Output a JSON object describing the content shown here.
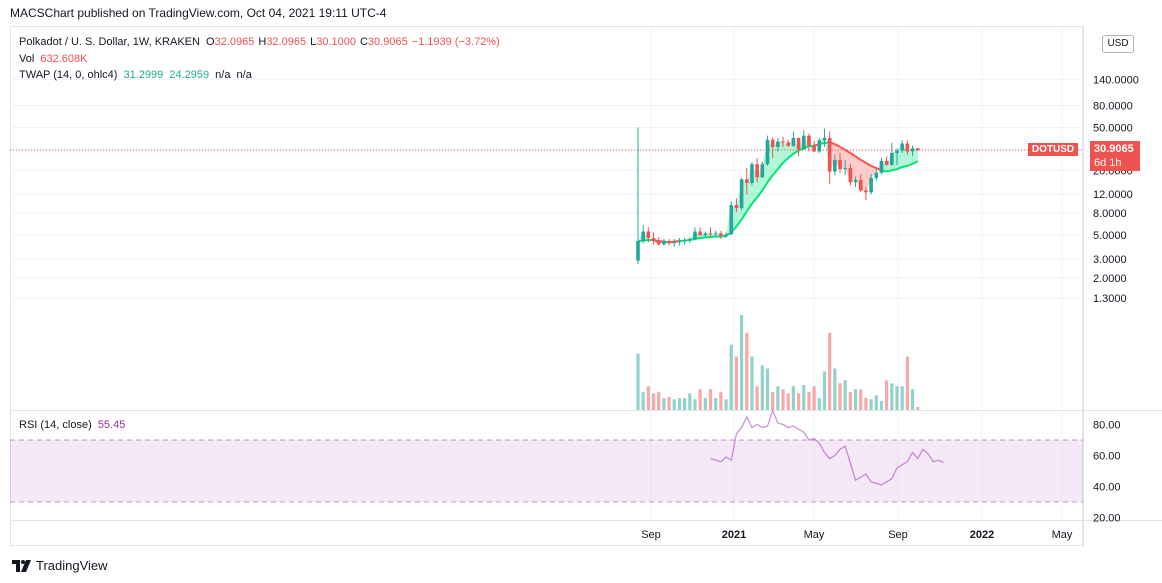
{
  "publisher": "MACSChart published on TradingView.com, Oct 04, 2021 19:11 UTC-4",
  "legend": {
    "title": "Polkadot / U. S. Dollar, 1W, KRAKEN",
    "o_label": "O",
    "o_value": "32.0965",
    "h_label": "H",
    "h_value": "32.0965",
    "l_label": "L",
    "l_value": "30.1000",
    "c_label": "C",
    "c_value": "30.9065",
    "change": "−1.1939 (−3.72%)",
    "vol_label": "Vol",
    "vol_value": "632.608K",
    "twap_label": "TWAP (14, 0, ohlc4)",
    "twap_v1": "31.2999",
    "twap_v2": "24.2959",
    "twap_na1": "n/a",
    "twap_na2": "n/a",
    "rsi_label": "RSI (14, close)",
    "rsi_value": "55.45"
  },
  "price_axis": {
    "currency_button": "USD",
    "symbol_tag": "DOTUSD",
    "last_price": "30.9065",
    "countdown": "6d 1h",
    "top_label": "140.0000"
  },
  "branding": "TradingView",
  "colors": {
    "up": "#26a69a",
    "down": "#ef5350",
    "rsi": "#9c27b0",
    "twap_up": "#00e676",
    "twap_down": "#ff5252"
  },
  "chart_data": [
    {
      "type": "candlestick",
      "title": "Polkadot / U. S. Dollar, 1W, KRAKEN",
      "scale": "log",
      "yticks": [
        1.3,
        2.0,
        3.0,
        5.0,
        8.0,
        12.0,
        20.0,
        30.9065,
        50.0,
        80.0,
        140.0
      ],
      "ytick_labels": [
        "1.3000",
        "2.0000",
        "3.0000",
        "5.0000",
        "8.0000",
        "12.0000",
        "20.0000",
        "30.9065",
        "50.0000",
        "80.0000",
        "140.0000"
      ],
      "xticks": [
        "Sep",
        "2021",
        "May",
        "Sep",
        "2022",
        "May"
      ],
      "candles": [
        [
          2.9,
          50.0,
          2.7,
          4.4
        ],
        [
          4.4,
          6.2,
          4.2,
          5.4
        ],
        [
          5.4,
          5.9,
          4.3,
          4.7
        ],
        [
          4.7,
          5.3,
          4.1,
          4.4
        ],
        [
          4.4,
          4.8,
          4.0,
          4.1
        ],
        [
          4.1,
          4.6,
          4.0,
          4.4
        ],
        [
          4.4,
          4.6,
          4.0,
          4.2
        ],
        [
          4.2,
          4.6,
          3.9,
          4.3
        ],
        [
          4.3,
          4.7,
          4.0,
          4.4
        ],
        [
          4.4,
          4.7,
          4.1,
          4.5
        ],
        [
          4.5,
          4.8,
          4.2,
          4.6
        ],
        [
          4.6,
          5.9,
          4.5,
          5.4
        ],
        [
          5.4,
          5.9,
          4.9,
          5.0
        ],
        [
          5.0,
          5.4,
          4.8,
          5.2
        ],
        [
          5.2,
          5.9,
          4.9,
          5.1
        ],
        [
          5.1,
          5.5,
          4.8,
          5.2
        ],
        [
          5.2,
          5.5,
          4.6,
          4.9
        ],
        [
          4.9,
          5.3,
          4.7,
          5.1
        ],
        [
          5.1,
          10.3,
          5.0,
          9.5
        ],
        [
          9.5,
          11.0,
          8.2,
          8.9
        ],
        [
          8.9,
          17.0,
          8.5,
          16.5
        ],
        [
          16.5,
          21.0,
          12.0,
          15.3
        ],
        [
          15.3,
          24.0,
          14.5,
          22.8
        ],
        [
          22.8,
          26.0,
          15.5,
          17.3
        ],
        [
          17.3,
          24.0,
          17.0,
          22.8
        ],
        [
          22.8,
          42.0,
          22.0,
          38.5
        ],
        [
          38.5,
          40.5,
          26.0,
          33.0
        ],
        [
          33.0,
          40.0,
          30.0,
          37.0
        ],
        [
          37.0,
          41.0,
          33.0,
          36.5
        ],
        [
          36.5,
          38.5,
          33.0,
          33.8
        ],
        [
          33.8,
          46.0,
          33.0,
          40.0
        ],
        [
          40.0,
          40.5,
          27.0,
          31.5
        ],
        [
          31.5,
          47.0,
          31.0,
          42.0
        ],
        [
          42.0,
          44.0,
          30.0,
          34.0
        ],
        [
          34.0,
          37.5,
          29.5,
          30.0
        ],
        [
          30.0,
          40.0,
          29.0,
          38.0
        ],
        [
          38.0,
          49.0,
          33.0,
          40.0
        ],
        [
          40.0,
          46.0,
          15.0,
          19.5
        ],
        [
          19.5,
          28.0,
          18.0,
          25.0
        ],
        [
          25.0,
          29.0,
          19.0,
          20.5
        ],
        [
          20.5,
          25.0,
          18.0,
          21.0
        ],
        [
          21.0,
          23.0,
          14.5,
          15.5
        ],
        [
          15.5,
          17.5,
          14.0,
          16.3
        ],
        [
          16.3,
          18.5,
          12.5,
          13.0
        ],
        [
          13.0,
          14.0,
          10.6,
          12.5
        ],
        [
          12.5,
          18.5,
          12.0,
          17.0
        ],
        [
          17.0,
          20.5,
          16.0,
          19.0
        ],
        [
          19.0,
          26.0,
          18.5,
          24.5
        ],
        [
          24.5,
          27.0,
          22.0,
          22.5
        ],
        [
          22.5,
          36.0,
          22.0,
          29.0
        ],
        [
          29.0,
          32.0,
          22.5,
          30.5
        ],
        [
          30.5,
          38.0,
          29.0,
          35.5
        ],
        [
          35.5,
          38.0,
          28.0,
          30.0
        ],
        [
          30.0,
          34.0,
          27.0,
          32.0
        ],
        [
          32.0965,
          32.0965,
          30.1,
          30.9065
        ]
      ],
      "twap": [
        4.4,
        4.45,
        4.5,
        4.5,
        4.4,
        4.35,
        4.3,
        4.35,
        4.4,
        4.45,
        4.5,
        4.6,
        4.7,
        4.75,
        4.8,
        4.85,
        4.85,
        4.9,
        5.3,
        6.0,
        7.0,
        8.3,
        9.8,
        11.2,
        13.0,
        15.5,
        18.0,
        20.5,
        23.5,
        26.0,
        28.5,
        30.5,
        32.0,
        33.5,
        34.0,
        35.0,
        36.0,
        36.5,
        35.0,
        33.0,
        31.0,
        29.0,
        27.0,
        25.0,
        23.5,
        22.0,
        21.0,
        20.0,
        19.5,
        20.0,
        20.5,
        21.5,
        22.0,
        23.0,
        24.2959
      ],
      "twap_current": 31.2999,
      "volume": [
        95,
        30,
        40,
        28,
        30,
        20,
        22,
        18,
        20,
        20,
        28,
        18,
        35,
        20,
        35,
        20,
        30,
        18,
        110,
        90,
        160,
        130,
        90,
        40,
        75,
        70,
        30,
        40,
        35,
        28,
        40,
        28,
        42,
        30,
        40,
        20,
        65,
        130,
        70,
        45,
        50,
        30,
        35,
        35,
        20,
        18,
        25,
        15,
        50,
        45,
        40,
        40,
        90,
        35,
        5
      ],
      "volume_last": "632.608K"
    },
    {
      "type": "line",
      "title": "RSI (14, close)",
      "yticks": [
        20,
        40,
        60,
        80
      ],
      "ytick_labels": [
        "20.00",
        "40.00",
        "60.00",
        "80.00"
      ],
      "band": [
        30,
        70
      ],
      "start_index": 14,
      "values": [
        58,
        57,
        56,
        59,
        57,
        74,
        78,
        85,
        78,
        80,
        78,
        79,
        89,
        81,
        80,
        78,
        79,
        77,
        75,
        70,
        71,
        68,
        62,
        58,
        60,
        64,
        66,
        55,
        44,
        46,
        48,
        43,
        42,
        41,
        43,
        45,
        52,
        54,
        56,
        62,
        58,
        64,
        61,
        56,
        57,
        55.45
      ],
      "last": 55.45
    }
  ]
}
